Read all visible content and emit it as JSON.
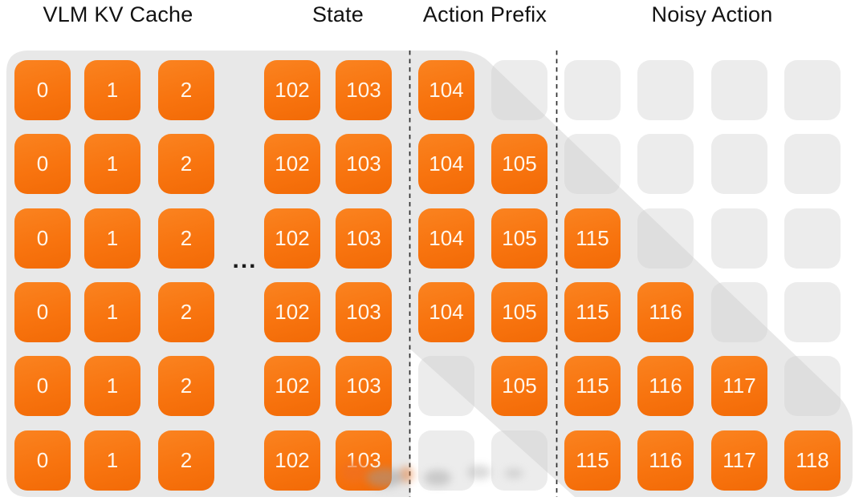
{
  "figure": {
    "headers": [
      {
        "label": "VLM KV Cache"
      },
      {
        "label": "State"
      },
      {
        "label": "Action Prefix"
      },
      {
        "label": "Noisy Action"
      }
    ],
    "ellipsis": "...",
    "colors": {
      "token_orange": "#F8740F",
      "token_orange_highlight": "#FA8320",
      "mask_panel_gray": "#E8E8E8",
      "header_text": "#121212",
      "token_text": "#FFF6EB",
      "divider": "#2E2E2E"
    },
    "grid": {
      "row_count": 6,
      "sections": {
        "vlm_kv_cache_columns": [
          "0",
          "1",
          "2",
          "102",
          "103"
        ],
        "action_prefix_columns": [
          "104",
          "105"
        ],
        "noisy_action_columns": [
          "115",
          "116",
          "117",
          "118"
        ]
      },
      "rows": [
        [
          "0",
          "1",
          "2",
          "102",
          "103",
          "104",
          null,
          null,
          null,
          null,
          null
        ],
        [
          "0",
          "1",
          "2",
          "102",
          "103",
          "104",
          "105",
          null,
          null,
          null,
          null
        ],
        [
          "0",
          "1",
          "2",
          "102",
          "103",
          "104",
          "105",
          "115",
          null,
          null,
          null
        ],
        [
          "0",
          "1",
          "2",
          "102",
          "103",
          "104",
          "105",
          "115",
          "116",
          null,
          null
        ],
        [
          "0",
          "1",
          "2",
          "102",
          "103",
          null,
          "105",
          "115",
          "116",
          "117",
          null
        ],
        [
          "0",
          "1",
          "2",
          "102",
          "103",
          null,
          null,
          "115",
          "116",
          "117",
          "118"
        ]
      ]
    }
  }
}
